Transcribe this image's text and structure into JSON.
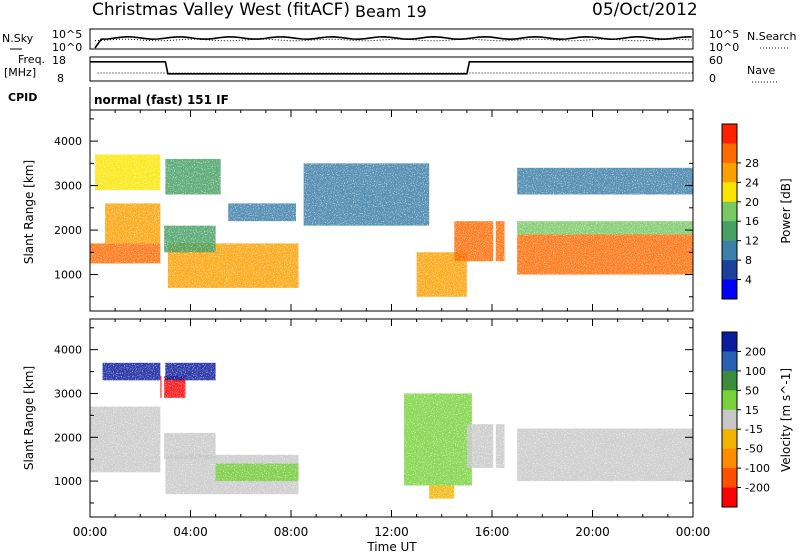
{
  "header": {
    "station": "Christmas Valley West (fitACF)",
    "beam": "Beam 19",
    "date": "05/Oct/2012",
    "cpid_label": "CPID",
    "cpid_text": "normal (fast) 151 IF"
  },
  "strip_nsky": {
    "left_label": "N.Sky",
    "right_label": "N.Search",
    "left_ticks": [
      "10^5",
      "10^0"
    ],
    "right_ticks": [
      "10^5",
      "10^0"
    ]
  },
  "strip_freq": {
    "left_label_1": "Freq.",
    "left_label_2": "[MHz]",
    "right_label": "Nave",
    "left_ticks": [
      "18",
      "8"
    ],
    "right_ticks": [
      "60",
      "0"
    ]
  },
  "colors": {
    "power_scale": [
      "#0000ff",
      "#1c3f9c",
      "#3c7fa8",
      "#46a064",
      "#78c864",
      "#fae600",
      "#faa000",
      "#ff6a00",
      "#ff2000"
    ],
    "velocity_scale": [
      "#0b1c9c",
      "#2860b4",
      "#3c8c3c",
      "#78d23c",
      "#c8c8c8",
      "#f0b400",
      "#ff8c00",
      "#ff5000",
      "#ff0000"
    ],
    "ground_scatter": "#c8c8c8"
  },
  "chart_data": [
    {
      "type": "heatmap",
      "panel": "power",
      "xlabel": "Time UT",
      "ylabel": "Slant Range [km]",
      "colorbar_label": "Power [dB]",
      "colorbar_ticks": [
        "4",
        "8",
        "12",
        "16",
        "20",
        "24",
        "28"
      ],
      "x_ticks": [
        "00:00",
        "04:00",
        "08:00",
        "12:00",
        "16:00",
        "20:00",
        "00:00"
      ],
      "y_ticks": [
        "1000",
        "2000",
        "3000",
        "4000"
      ],
      "xlim_hours": [
        0,
        24
      ],
      "ylim_km": [
        180,
        4700
      ],
      "echo_regions": [
        {
          "t0": 0.0,
          "t1": 2.8,
          "r0": 1250,
          "r1": 1700,
          "level": 26
        },
        {
          "t0": 0.6,
          "t1": 2.8,
          "r0": 1700,
          "r1": 2600,
          "level": 24
        },
        {
          "t0": 0.2,
          "t1": 2.8,
          "r0": 2900,
          "r1": 3700,
          "level": 18
        },
        {
          "t0": 3.1,
          "t1": 8.3,
          "r0": 700,
          "r1": 1700,
          "level": 22
        },
        {
          "t0": 2.9,
          "t1": 5.0,
          "r0": 1500,
          "r1": 2100,
          "level": 12
        },
        {
          "t0": 3.0,
          "t1": 5.2,
          "r0": 2800,
          "r1": 3600,
          "level": 10
        },
        {
          "t0": 5.5,
          "t1": 8.2,
          "r0": 2200,
          "r1": 2600,
          "level": 6
        },
        {
          "t0": 8.5,
          "t1": 13.5,
          "r0": 2100,
          "r1": 3500,
          "level": 6
        },
        {
          "t0": 13.0,
          "t1": 15.0,
          "r0": 500,
          "r1": 1500,
          "level": 22
        },
        {
          "t0": 14.5,
          "t1": 16.5,
          "r0": 1300,
          "r1": 2200,
          "level": 26
        },
        {
          "t0": 17.0,
          "t1": 24.0,
          "r0": 1000,
          "r1": 1900,
          "level": 27
        },
        {
          "t0": 17.0,
          "t1": 24.0,
          "r0": 1900,
          "r1": 2200,
          "level": 14
        },
        {
          "t0": 17.0,
          "t1": 24.0,
          "r0": 2800,
          "r1": 3400,
          "level": 6
        }
      ]
    },
    {
      "type": "heatmap",
      "panel": "velocity",
      "xlabel": "Time UT",
      "ylabel": "Slant Range [km]",
      "colorbar_label": "Velocity [m s^-1]",
      "colorbar_ticks": [
        "200",
        "100",
        "50",
        "15",
        "-15",
        "-50",
        "-100",
        "-200"
      ],
      "x_ticks": [
        "00:00",
        "04:00",
        "08:00",
        "12:00",
        "16:00",
        "20:00",
        "00:00"
      ],
      "y_ticks": [
        "1000",
        "2000",
        "3000",
        "4000"
      ],
      "xlim_hours": [
        0,
        24
      ],
      "ylim_km": [
        180,
        4700
      ],
      "echo_regions": [
        {
          "t0": 0.0,
          "t1": 2.8,
          "r0": 1200,
          "r1": 2700,
          "v": 0
        },
        {
          "t0": 0.5,
          "t1": 2.8,
          "r0": 3300,
          "r1": 3700,
          "v": 180
        },
        {
          "t0": 2.8,
          "t1": 3.8,
          "r0": 2900,
          "r1": 3400,
          "v": -200
        },
        {
          "t0": 3.0,
          "t1": 5.0,
          "r0": 3300,
          "r1": 3700,
          "v": 200
        },
        {
          "t0": 3.0,
          "t1": 8.3,
          "r0": 700,
          "r1": 1600,
          "v": 0
        },
        {
          "t0": 5.0,
          "t1": 8.3,
          "r0": 1000,
          "r1": 1400,
          "v": 35
        },
        {
          "t0": 2.9,
          "t1": 5.0,
          "r0": 1500,
          "r1": 2100,
          "v": 0
        },
        {
          "t0": 12.5,
          "t1": 15.2,
          "r0": 900,
          "r1": 3000,
          "v": 40
        },
        {
          "t0": 13.5,
          "t1": 14.5,
          "r0": 600,
          "r1": 900,
          "v": -30
        },
        {
          "t0": 15.0,
          "t1": 16.5,
          "r0": 1300,
          "r1": 2300,
          "v": 0
        },
        {
          "t0": 17.0,
          "t1": 24.0,
          "r0": 1000,
          "r1": 2200,
          "v": 0
        }
      ]
    },
    {
      "type": "line",
      "panel": "freq_strip",
      "series": [
        {
          "name": "Freq.",
          "x": [
            0,
            0.3,
            0.4,
            3.0,
            3.1,
            15.0,
            15.1,
            16.1,
            16.2,
            24
          ],
          "y": [
            16,
            16,
            16,
            16,
            11,
            11,
            16,
            16,
            16,
            16
          ]
        }
      ]
    }
  ]
}
